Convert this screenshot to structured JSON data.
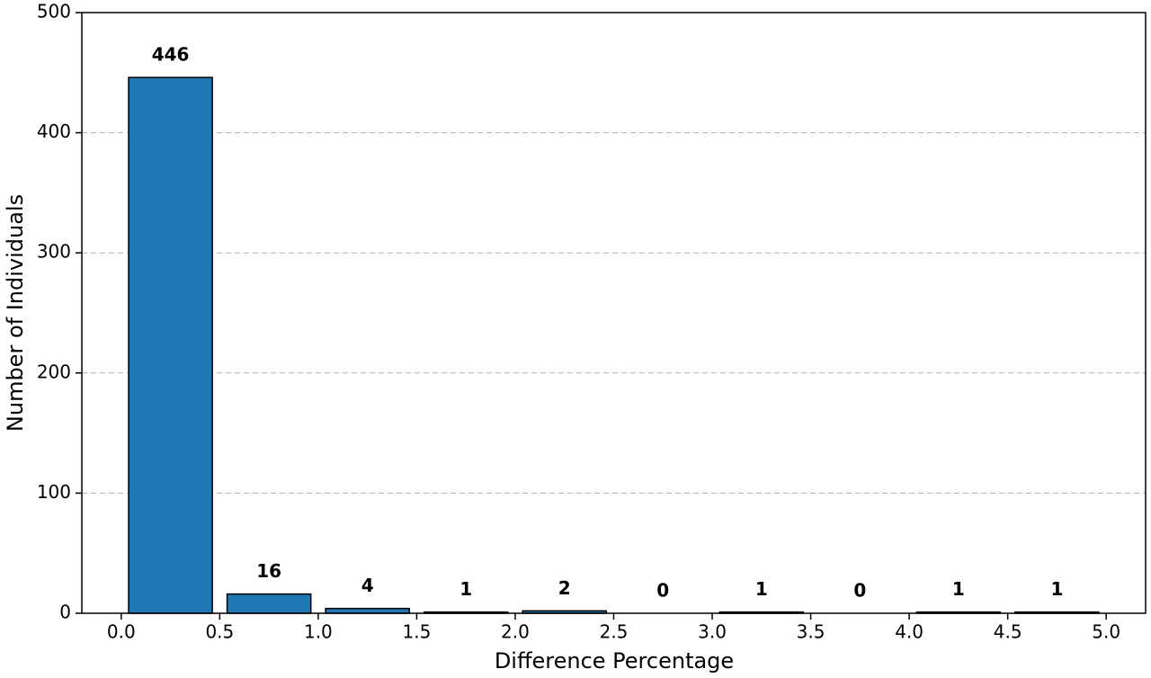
{
  "chart_data": {
    "type": "histogram",
    "xlabel": "Difference Percentage",
    "ylabel": "Number of Individuals",
    "bins": [
      0.0,
      0.5,
      1.0,
      1.5,
      2.0,
      2.5,
      3.0,
      3.5,
      4.0,
      4.5,
      5.0
    ],
    "counts": [
      446,
      16,
      4,
      1,
      2,
      0,
      1,
      0,
      1,
      1
    ],
    "color": "#1f77b4",
    "xlim": [
      -0.2,
      5.2
    ],
    "xticks": [
      {
        "value": 0,
        "label": "0.0"
      },
      {
        "value": 0.5,
        "label": "0.5"
      },
      {
        "value": 1,
        "label": "1.0"
      },
      {
        "value": 1.5,
        "label": "1.5"
      },
      {
        "value": 2,
        "label": "2.0"
      },
      {
        "value": 2.5,
        "label": "2.5"
      },
      {
        "value": 3,
        "label": "3.0"
      },
      {
        "value": 3.5,
        "label": "3.5"
      },
      {
        "value": 4,
        "label": "4.0"
      },
      {
        "value": 4.5,
        "label": "4.5"
      },
      {
        "value": 5,
        "label": "5.0"
      }
    ],
    "ylim": [
      0,
      500
    ],
    "yticks": [
      0,
      100,
      200,
      300,
      400,
      500
    ],
    "grid": true
  }
}
